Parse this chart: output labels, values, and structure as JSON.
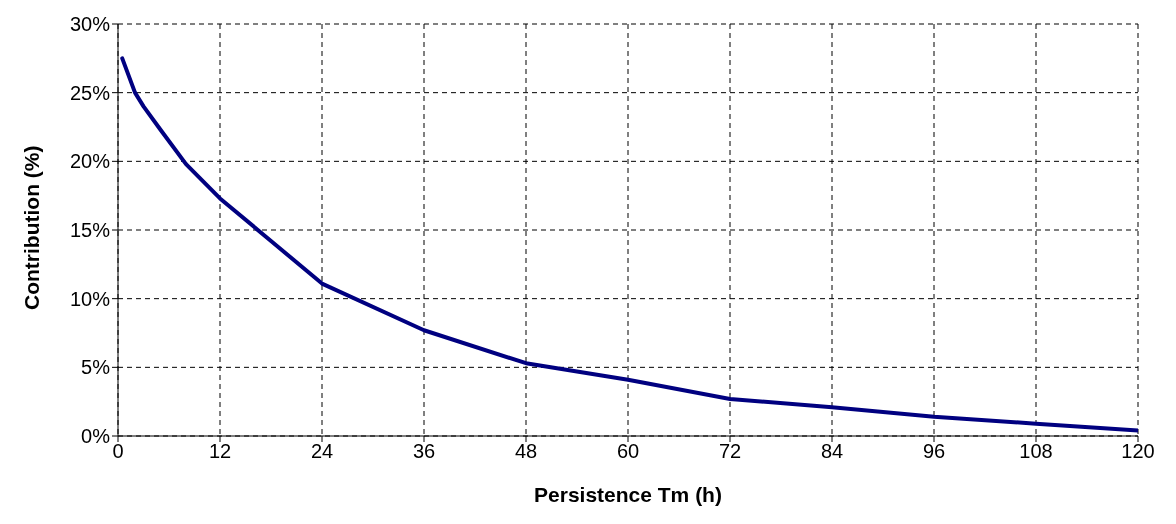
{
  "chart_data": {
    "type": "line",
    "xlabel": "Persistence Tm (h)",
    "ylabel": "Contribution (%)",
    "x": [
      0.5,
      2,
      3,
      5,
      8,
      12,
      18,
      24,
      36,
      48,
      60,
      72,
      84,
      96,
      108,
      120
    ],
    "series": [
      {
        "color": "#000080",
        "values": [
          27.5,
          25,
          24,
          22.3,
          19.8,
          17.3,
          14.2,
          11.1,
          7.7,
          5.3,
          4.1,
          2.7,
          2.1,
          1.4,
          0.9,
          0.4
        ]
      }
    ],
    "xlim": [
      0,
      120
    ],
    "xticks": [
      0,
      12,
      24,
      36,
      48,
      60,
      72,
      84,
      96,
      108,
      120
    ],
    "ylim": [
      0,
      30
    ],
    "yticks": [
      {
        "value": 0,
        "label": "0%"
      },
      {
        "value": 5,
        "label": "5%"
      },
      {
        "value": 10,
        "label": "10%"
      },
      {
        "value": 15,
        "label": "15%"
      },
      {
        "value": 20,
        "label": "20%"
      },
      {
        "value": 25,
        "label": "25%"
      },
      {
        "value": 30,
        "label": "30%"
      }
    ],
    "grid": true,
    "marker": "none",
    "line_style": "solid"
  }
}
